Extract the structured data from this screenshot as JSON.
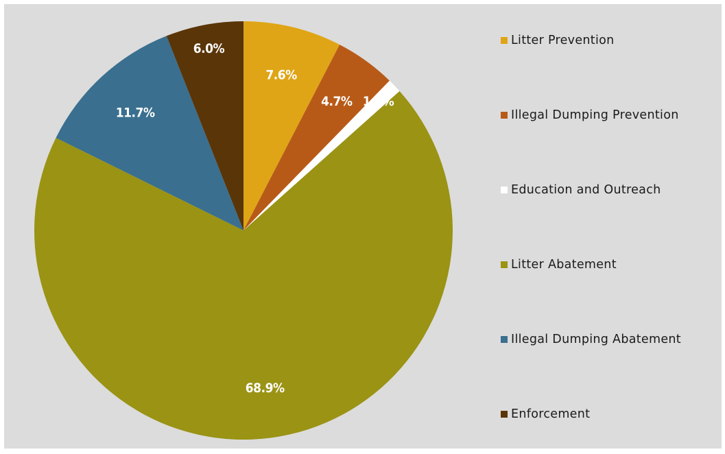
{
  "chart_data": {
    "type": "pie",
    "categories": [
      "Litter Prevention",
      "Illegal Dumping Prevention",
      "Education and Outreach",
      "Litter Abatement",
      "Illegal Dumping Abatement",
      "Enforcement"
    ],
    "values": [
      7.6,
      4.7,
      1.1,
      68.9,
      11.7,
      6.0
    ],
    "value_labels": [
      "7.6%",
      "4.7%",
      "1.1%",
      "68.9%",
      "11.7%",
      "6.0%"
    ],
    "colors": [
      "#dfa516",
      "#b85a17",
      "#ffffff",
      "#9a9314",
      "#3a6f8f",
      "#5a3508"
    ],
    "legend_position": "right",
    "start_angle": "top, clockwise"
  },
  "legend": {
    "items": [
      {
        "label": "Litter Prevention"
      },
      {
        "label": "Illegal Dumping Prevention"
      },
      {
        "label": "Education and Outreach"
      },
      {
        "label": "Litter Abatement"
      },
      {
        "label": "Illegal Dumping Abatement"
      },
      {
        "label": "Enforcement"
      }
    ]
  }
}
